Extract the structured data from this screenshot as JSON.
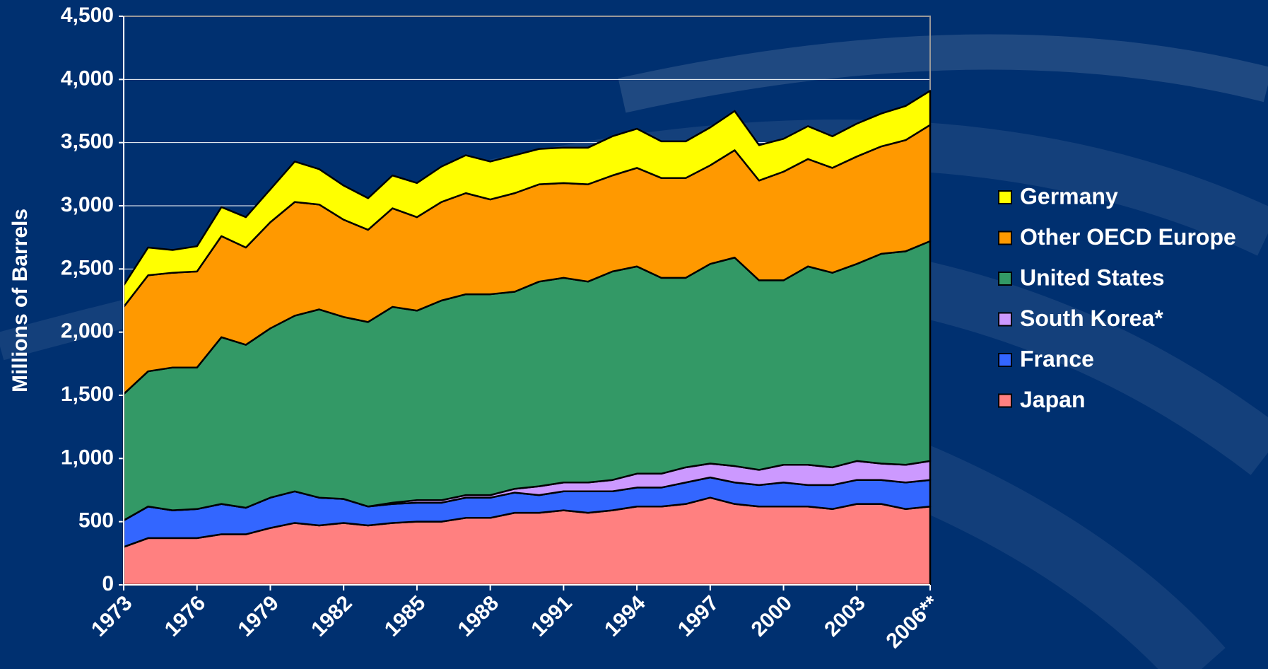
{
  "chart_data": {
    "type": "stacked-area",
    "y_label": "Millions of Barrels",
    "categories": [
      "1973",
      null,
      null,
      "1976",
      null,
      null,
      "1979",
      null,
      null,
      "1982",
      null,
      null,
      "1985",
      null,
      null,
      "1988",
      null,
      null,
      "1991",
      null,
      null,
      "1994",
      null,
      null,
      "1997",
      null,
      null,
      "2000",
      null,
      null,
      "2003",
      null,
      null,
      "2006**"
    ],
    "series": [
      {
        "name": "Japan",
        "color": "#ff8080",
        "values": [
          300,
          370,
          370,
          370,
          400,
          400,
          450,
          490,
          470,
          490,
          470,
          490,
          500,
          500,
          530,
          530,
          570,
          570,
          590,
          570,
          590,
          620,
          620,
          640,
          690,
          640,
          620,
          620,
          620,
          600,
          640,
          640,
          600,
          620
        ]
      },
      {
        "name": "France",
        "color": "#3366ff",
        "values": [
          210,
          250,
          220,
          230,
          240,
          210,
          240,
          250,
          220,
          190,
          150,
          150,
          150,
          150,
          160,
          160,
          160,
          140,
          150,
          170,
          150,
          150,
          150,
          170,
          160,
          170,
          170,
          190,
          170,
          190,
          190,
          190,
          210,
          210
        ]
      },
      {
        "name": "South Korea*",
        "color": "#cc99ff",
        "values": [
          0,
          0,
          0,
          0,
          0,
          0,
          0,
          0,
          0,
          0,
          0,
          10,
          20,
          20,
          20,
          20,
          30,
          70,
          70,
          70,
          90,
          110,
          110,
          120,
          110,
          130,
          120,
          140,
          160,
          140,
          150,
          130,
          140,
          150
        ]
      },
      {
        "name": "United States",
        "color": "#339966",
        "values": [
          1000,
          1070,
          1130,
          1120,
          1320,
          1290,
          1340,
          1390,
          1490,
          1440,
          1460,
          1550,
          1500,
          1580,
          1590,
          1590,
          1560,
          1620,
          1620,
          1590,
          1650,
          1640,
          1550,
          1500,
          1580,
          1650,
          1500,
          1460,
          1570,
          1540,
          1560,
          1660,
          1690,
          1740
        ]
      },
      {
        "name": "Other OECD Europe",
        "color": "#ff9900",
        "values": [
          690,
          760,
          750,
          760,
          800,
          770,
          840,
          900,
          830,
          770,
          730,
          780,
          740,
          780,
          800,
          750,
          780,
          770,
          750,
          770,
          760,
          780,
          790,
          790,
          780,
          850,
          790,
          860,
          850,
          830,
          850,
          850,
          880,
          920
        ]
      },
      {
        "name": "Germany",
        "color": "#ffff00",
        "values": [
          170,
          220,
          180,
          200,
          230,
          240,
          260,
          320,
          280,
          270,
          250,
          260,
          270,
          280,
          300,
          300,
          300,
          280,
          280,
          290,
          310,
          310,
          290,
          290,
          300,
          310,
          280,
          260,
          260,
          250,
          260,
          260,
          270,
          270
        ]
      }
    ],
    "ylim": [
      0,
      4500
    ],
    "yticks": [
      0,
      500,
      {
        "value": 1000,
        "label": "1,000"
      },
      {
        "value": 1500,
        "label": "1,500"
      },
      {
        "value": 2000,
        "label": "2,000"
      },
      {
        "value": 2500,
        "label": "2,500"
      },
      {
        "value": 3000,
        "label": "3,000"
      },
      {
        "value": 3500,
        "label": "3,500"
      },
      {
        "value": 4000,
        "label": "4,000"
      },
      {
        "value": 4500,
        "label": "4,500"
      }
    ],
    "grid": true,
    "legend": "right"
  }
}
